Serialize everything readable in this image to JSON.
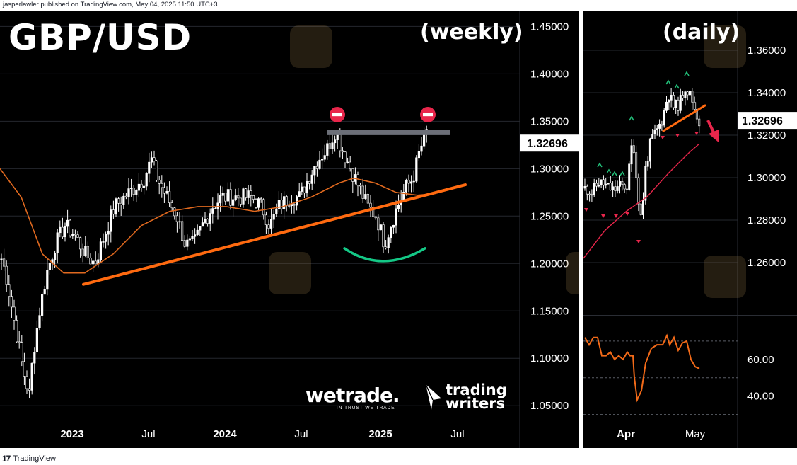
{
  "header": {
    "publish_line": "jasperlawler published on TradingView.com, May 04, 2025 11:50 UTC+3"
  },
  "footer": {
    "brand": "TradingView"
  },
  "branding": {
    "wetrade": "wetrade.",
    "wetrade_tagline": "IN TRUST WE TRADE",
    "trading_writers": [
      "trading",
      "writers"
    ]
  },
  "colors": {
    "background": "#000000",
    "candle": "#ffffff",
    "moving_average": "#e0691f",
    "trendline": "#ff6a10",
    "resistance": "#6c6f78",
    "stop_sign": "#e8264b",
    "arc": "#14c886",
    "arrow": "#e8264b",
    "price_tag_bg": "#ffffff",
    "rsi": "#f26a18"
  },
  "chart_data": [
    {
      "type": "candlestick",
      "title": "GBP/USD",
      "subtitle": "(weekly)",
      "ylim": [
        1.03,
        1.46
      ],
      "y_ticks": [
        "1.45000",
        "1.40000",
        "1.35000",
        "1.30000",
        "1.25000",
        "1.20000",
        "1.15000",
        "1.10000",
        "1.05000"
      ],
      "x_ticks": [
        "2023",
        "Jul",
        "2024",
        "Jul",
        "2025",
        "Jul"
      ],
      "last_price": "1.32696",
      "grid": true,
      "close_path": [
        [
          0,
          1.21
        ],
        [
          8,
          1.19
        ],
        [
          20,
          1.14
        ],
        [
          32,
          1.09
        ],
        [
          42,
          1.06
        ],
        [
          46,
          1.1
        ],
        [
          56,
          1.15
        ],
        [
          66,
          1.19
        ],
        [
          78,
          1.22
        ],
        [
          92,
          1.24
        ],
        [
          106,
          1.23
        ],
        [
          120,
          1.21
        ],
        [
          134,
          1.2
        ],
        [
          148,
          1.23
        ],
        [
          162,
          1.26
        ],
        [
          176,
          1.27
        ],
        [
          190,
          1.28
        ],
        [
          204,
          1.29
        ],
        [
          214,
          1.31
        ],
        [
          222,
          1.29
        ],
        [
          236,
          1.27
        ],
        [
          250,
          1.25
        ],
        [
          262,
          1.22
        ],
        [
          274,
          1.22
        ],
        [
          286,
          1.24
        ],
        [
          300,
          1.26
        ],
        [
          314,
          1.27
        ],
        [
          328,
          1.27
        ],
        [
          342,
          1.27
        ],
        [
          356,
          1.27
        ],
        [
          370,
          1.26
        ],
        [
          382,
          1.24
        ],
        [
          394,
          1.26
        ],
        [
          410,
          1.27
        ],
        [
          424,
          1.27
        ],
        [
          436,
          1.29
        ],
        [
          450,
          1.31
        ],
        [
          462,
          1.32
        ],
        [
          474,
          1.34
        ],
        [
          484,
          1.32
        ],
        [
          496,
          1.3
        ],
        [
          508,
          1.28
        ],
        [
          520,
          1.26
        ],
        [
          532,
          1.25
        ],
        [
          544,
          1.22
        ],
        [
          552,
          1.24
        ],
        [
          562,
          1.26
        ],
        [
          574,
          1.28
        ],
        [
          584,
          1.29
        ],
        [
          594,
          1.32
        ],
        [
          604,
          1.34
        ]
      ],
      "moving_average": [
        [
          0,
          1.3
        ],
        [
          30,
          1.27
        ],
        [
          60,
          1.21
        ],
        [
          90,
          1.19
        ],
        [
          120,
          1.19
        ],
        [
          160,
          1.21
        ],
        [
          200,
          1.24
        ],
        [
          240,
          1.255
        ],
        [
          280,
          1.26
        ],
        [
          320,
          1.26
        ],
        [
          360,
          1.255
        ],
        [
          400,
          1.26
        ],
        [
          440,
          1.27
        ],
        [
          480,
          1.285
        ],
        [
          500,
          1.29
        ],
        [
          530,
          1.285
        ],
        [
          560,
          1.275
        ],
        [
          590,
          1.272
        ],
        [
          604,
          1.273
        ]
      ],
      "trendline": [
        [
          118,
          1.178
        ],
        [
          658,
          1.283
        ]
      ],
      "resistance": [
        [
          463,
          1.338
        ],
        [
          637,
          1.338
        ]
      ],
      "arc": [
        [
          487,
          1.216
        ],
        [
          540,
          1.204
        ],
        [
          601,
          1.216
        ]
      ],
      "stop_signs": [
        [
          477,
          1.357
        ],
        [
          605,
          1.357
        ]
      ]
    },
    {
      "type": "candlestick",
      "subtitle": "(daily)",
      "ylim": [
        1.245,
        1.375
      ],
      "y_ticks": [
        "1.36000",
        "1.34000",
        "1.32000",
        "1.30000",
        "1.28000",
        "1.26000"
      ],
      "x_ticks": [
        "Apr",
        "May"
      ],
      "last_price": "1.32696",
      "close_path": [
        [
          4,
          1.295
        ],
        [
          12,
          1.293
        ],
        [
          22,
          1.298
        ],
        [
          32,
          1.296
        ],
        [
          42,
          1.294
        ],
        [
          52,
          1.296
        ],
        [
          62,
          1.296
        ],
        [
          70,
          1.32
        ],
        [
          76,
          1.295
        ],
        [
          82,
          1.28
        ],
        [
          88,
          1.305
        ],
        [
          96,
          1.318
        ],
        [
          104,
          1.322
        ],
        [
          112,
          1.328
        ],
        [
          120,
          1.34
        ],
        [
          128,
          1.333
        ],
        [
          136,
          1.335
        ],
        [
          144,
          1.343
        ],
        [
          152,
          1.338
        ],
        [
          160,
          1.33
        ],
        [
          164,
          1.326
        ]
      ],
      "moving_average": [
        [
          0,
          1.262
        ],
        [
          30,
          1.275
        ],
        [
          60,
          1.284
        ],
        [
          90,
          1.291
        ],
        [
          120,
          1.302
        ],
        [
          150,
          1.312
        ],
        [
          164,
          1.316
        ]
      ],
      "trendline": [
        [
          113,
          1.322
        ],
        [
          172,
          1.334
        ]
      ],
      "arrow": [
        [
          176,
          1.327
        ],
        [
          189,
          1.318
        ]
      ],
      "up_markers": [
        [
          23,
          1.306
        ],
        [
          36,
          1.303
        ],
        [
          44,
          1.302
        ],
        [
          55,
          1.302
        ],
        [
          68,
          1.328
        ],
        [
          120,
          1.345
        ],
        [
          132,
          1.343
        ],
        [
          146,
          1.349
        ]
      ],
      "down_markers": [
        [
          4,
          1.285
        ],
        [
          28,
          1.282
        ],
        [
          46,
          1.282
        ],
        [
          62,
          1.283
        ],
        [
          78,
          1.27
        ],
        [
          112,
          1.319
        ],
        [
          133,
          1.32
        ],
        [
          160,
          1.321
        ]
      ]
    },
    {
      "type": "line",
      "ylim": [
        26,
        80
      ],
      "y_ticks": [
        "60.00",
        "40.00"
      ],
      "values": [
        [
          2,
          72
        ],
        [
          8,
          68
        ],
        [
          14,
          72
        ],
        [
          20,
          72
        ],
        [
          26,
          62
        ],
        [
          32,
          62
        ],
        [
          38,
          64
        ],
        [
          44,
          60
        ],
        [
          50,
          62
        ],
        [
          56,
          60
        ],
        [
          62,
          64
        ],
        [
          66,
          62
        ],
        [
          70,
          62
        ],
        [
          72,
          50
        ],
        [
          76,
          38
        ],
        [
          82,
          43
        ],
        [
          88,
          58
        ],
        [
          96,
          66
        ],
        [
          104,
          68
        ],
        [
          112,
          68
        ],
        [
          118,
          73
        ],
        [
          122,
          68
        ],
        [
          128,
          72
        ],
        [
          134,
          65
        ],
        [
          140,
          69
        ],
        [
          146,
          70
        ],
        [
          152,
          60
        ],
        [
          158,
          56
        ],
        [
          164,
          55
        ]
      ]
    }
  ]
}
